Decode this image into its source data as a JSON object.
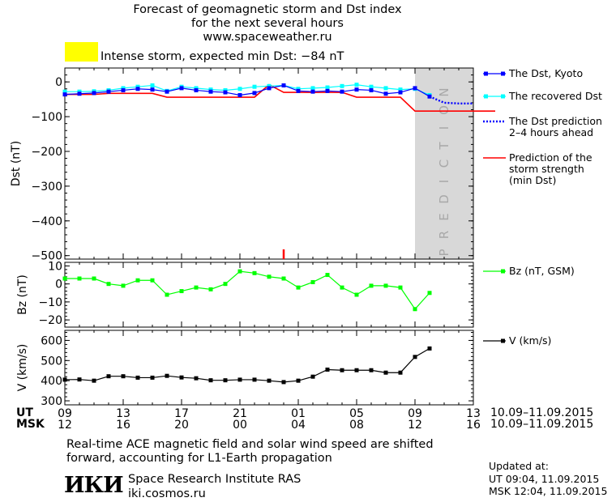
{
  "title_lines": [
    "Forecast of geomagnetic storm and Dst index",
    "for the next several hours",
    "www.spaceweather.ru"
  ],
  "alert": {
    "text": "Intense storm, expected min Dst: −84 nT",
    "color": "#ffff00"
  },
  "prediction_label": "PREDICTION",
  "legend": {
    "dst_kyoto": "The Dst, Kyoto",
    "recovered": "The recovered Dst",
    "prediction": "The Dst prediction\n2–4 hours ahead",
    "storm": "Prediction of the\nstorm strength\n(min Dst)",
    "bz": "Bz (nT, GSM)",
    "v": "V (km/s)"
  },
  "time_axis": {
    "ut_label": "UT",
    "msk_label": "MSK",
    "ut_ticks": [
      "09",
      "13",
      "17",
      "21",
      "01",
      "05",
      "09",
      "13"
    ],
    "msk_ticks": [
      "12",
      "16",
      "20",
      "00",
      "04",
      "08",
      "12",
      "16"
    ],
    "date_range_ut": "10.09–11.09.2015",
    "date_range_msk": "10.09–11.09.2015"
  },
  "footer": {
    "note": "Real-time ACE magnetic field and solar wind speed are shifted\nforward, accounting for L1-Earth propagation",
    "logo": "ИКИ",
    "institute": "Space Research Institute RAS\niki.cosmos.ru",
    "updated": "Updated at:\nUT   09:04, 11.09.2015\nMSK 12:04, 11.09.2015"
  },
  "colors": {
    "dst": "#0000ff",
    "recovered": "#00ffff",
    "storm": "#ff0000",
    "bz": "#00ff00",
    "v": "#000000",
    "prediction_band": "#d8d8d8",
    "marker": "#ff0000"
  },
  "chart_data": [
    {
      "type": "line",
      "ylabel": "Dst (nT)",
      "ylim": [
        -510,
        40
      ],
      "yticks": [
        0,
        -100,
        -200,
        -300,
        -400,
        -500
      ],
      "x_unit": "hours from 10.09 09:00 UT",
      "xlim": [
        0,
        28
      ],
      "series": [
        {
          "name": "The Dst, Kyoto",
          "x": [
            0,
            1,
            2,
            3,
            4,
            5,
            6,
            7,
            8,
            9,
            10,
            11,
            12,
            13,
            14,
            15,
            16,
            17,
            18,
            19,
            20,
            21,
            22,
            23,
            24,
            25
          ],
          "values": [
            -36,
            -34,
            -32,
            -28,
            -24,
            -20,
            -22,
            -28,
            -18,
            -24,
            -28,
            -30,
            -38,
            -32,
            -18,
            -10,
            -26,
            -28,
            -26,
            -28,
            -22,
            -24,
            -34,
            -30,
            -18,
            -42
          ]
        },
        {
          "name": "The recovered Dst",
          "x": [
            0,
            1,
            2,
            3,
            4,
            5,
            6,
            7,
            8,
            9,
            10,
            11,
            12,
            13,
            14,
            15,
            16,
            17,
            18,
            19,
            20,
            21,
            22,
            23,
            24,
            25
          ],
          "values": [
            -28,
            -28,
            -27,
            -24,
            -18,
            -14,
            -10,
            -26,
            -14,
            -18,
            -22,
            -24,
            -20,
            -14,
            -12,
            -10,
            -20,
            -18,
            -16,
            -12,
            -8,
            -14,
            -18,
            -22,
            -20,
            -38
          ]
        },
        {
          "name": "The Dst prediction 2–4 hours ahead",
          "x": [
            25,
            26,
            27,
            28
          ],
          "values": [
            -42,
            -60,
            -62,
            -62
          ]
        },
        {
          "name": "Prediction of the storm strength (min Dst)",
          "x": [
            0,
            1,
            2,
            3,
            4,
            5,
            6,
            7,
            8,
            9,
            10,
            11,
            12,
            13,
            14,
            15,
            16,
            17,
            18,
            19,
            20,
            21,
            22,
            23,
            24,
            25,
            26,
            27,
            28,
            29.5
          ],
          "values": [
            -36,
            -36,
            -36,
            -33,
            -33,
            -33,
            -33,
            -44,
            -44,
            -44,
            -44,
            -44,
            -44,
            -44,
            -8,
            -30,
            -30,
            -30,
            -30,
            -30,
            -44,
            -44,
            -44,
            -44,
            -84,
            -84,
            -84,
            -84,
            -84,
            -84
          ]
        }
      ],
      "marker_x": 15
    },
    {
      "type": "line",
      "ylabel": "Bz (nT)",
      "ylim": [
        -24,
        12
      ],
      "yticks": [
        10,
        0,
        -10,
        -20
      ],
      "xlim": [
        0,
        28
      ],
      "series": [
        {
          "name": "Bz (nT, GSM)",
          "x": [
            0,
            1,
            2,
            3,
            4,
            5,
            6,
            7,
            8,
            9,
            10,
            11,
            12,
            13,
            14,
            15,
            16,
            17,
            18,
            19,
            20,
            21,
            22,
            23,
            24,
            25,
            26
          ],
          "values": [
            3,
            3,
            3,
            0,
            -1,
            2,
            2,
            -6,
            -4,
            -2,
            -3,
            0,
            7,
            6,
            4,
            3,
            -2,
            1,
            5,
            -2,
            -6,
            -1,
            -1,
            -2,
            -14,
            -5,
            null
          ]
        }
      ]
    },
    {
      "type": "line",
      "ylabel": "V (km/s)",
      "ylim": [
        280,
        650
      ],
      "yticks": [
        600,
        500,
        400,
        300
      ],
      "xlim": [
        0,
        28
      ],
      "series": [
        {
          "name": "V (km/s)",
          "x": [
            0,
            1,
            2,
            3,
            4,
            5,
            6,
            7,
            8,
            9,
            10,
            11,
            12,
            13,
            14,
            15,
            16,
            17,
            18,
            19,
            20,
            21,
            22,
            23,
            24,
            25,
            26
          ],
          "values": [
            405,
            406,
            400,
            422,
            422,
            415,
            415,
            424,
            416,
            412,
            402,
            402,
            405,
            405,
            400,
            393,
            400,
            420,
            455,
            452,
            452,
            452,
            440,
            440,
            518,
            560,
            null
          ]
        }
      ]
    }
  ]
}
